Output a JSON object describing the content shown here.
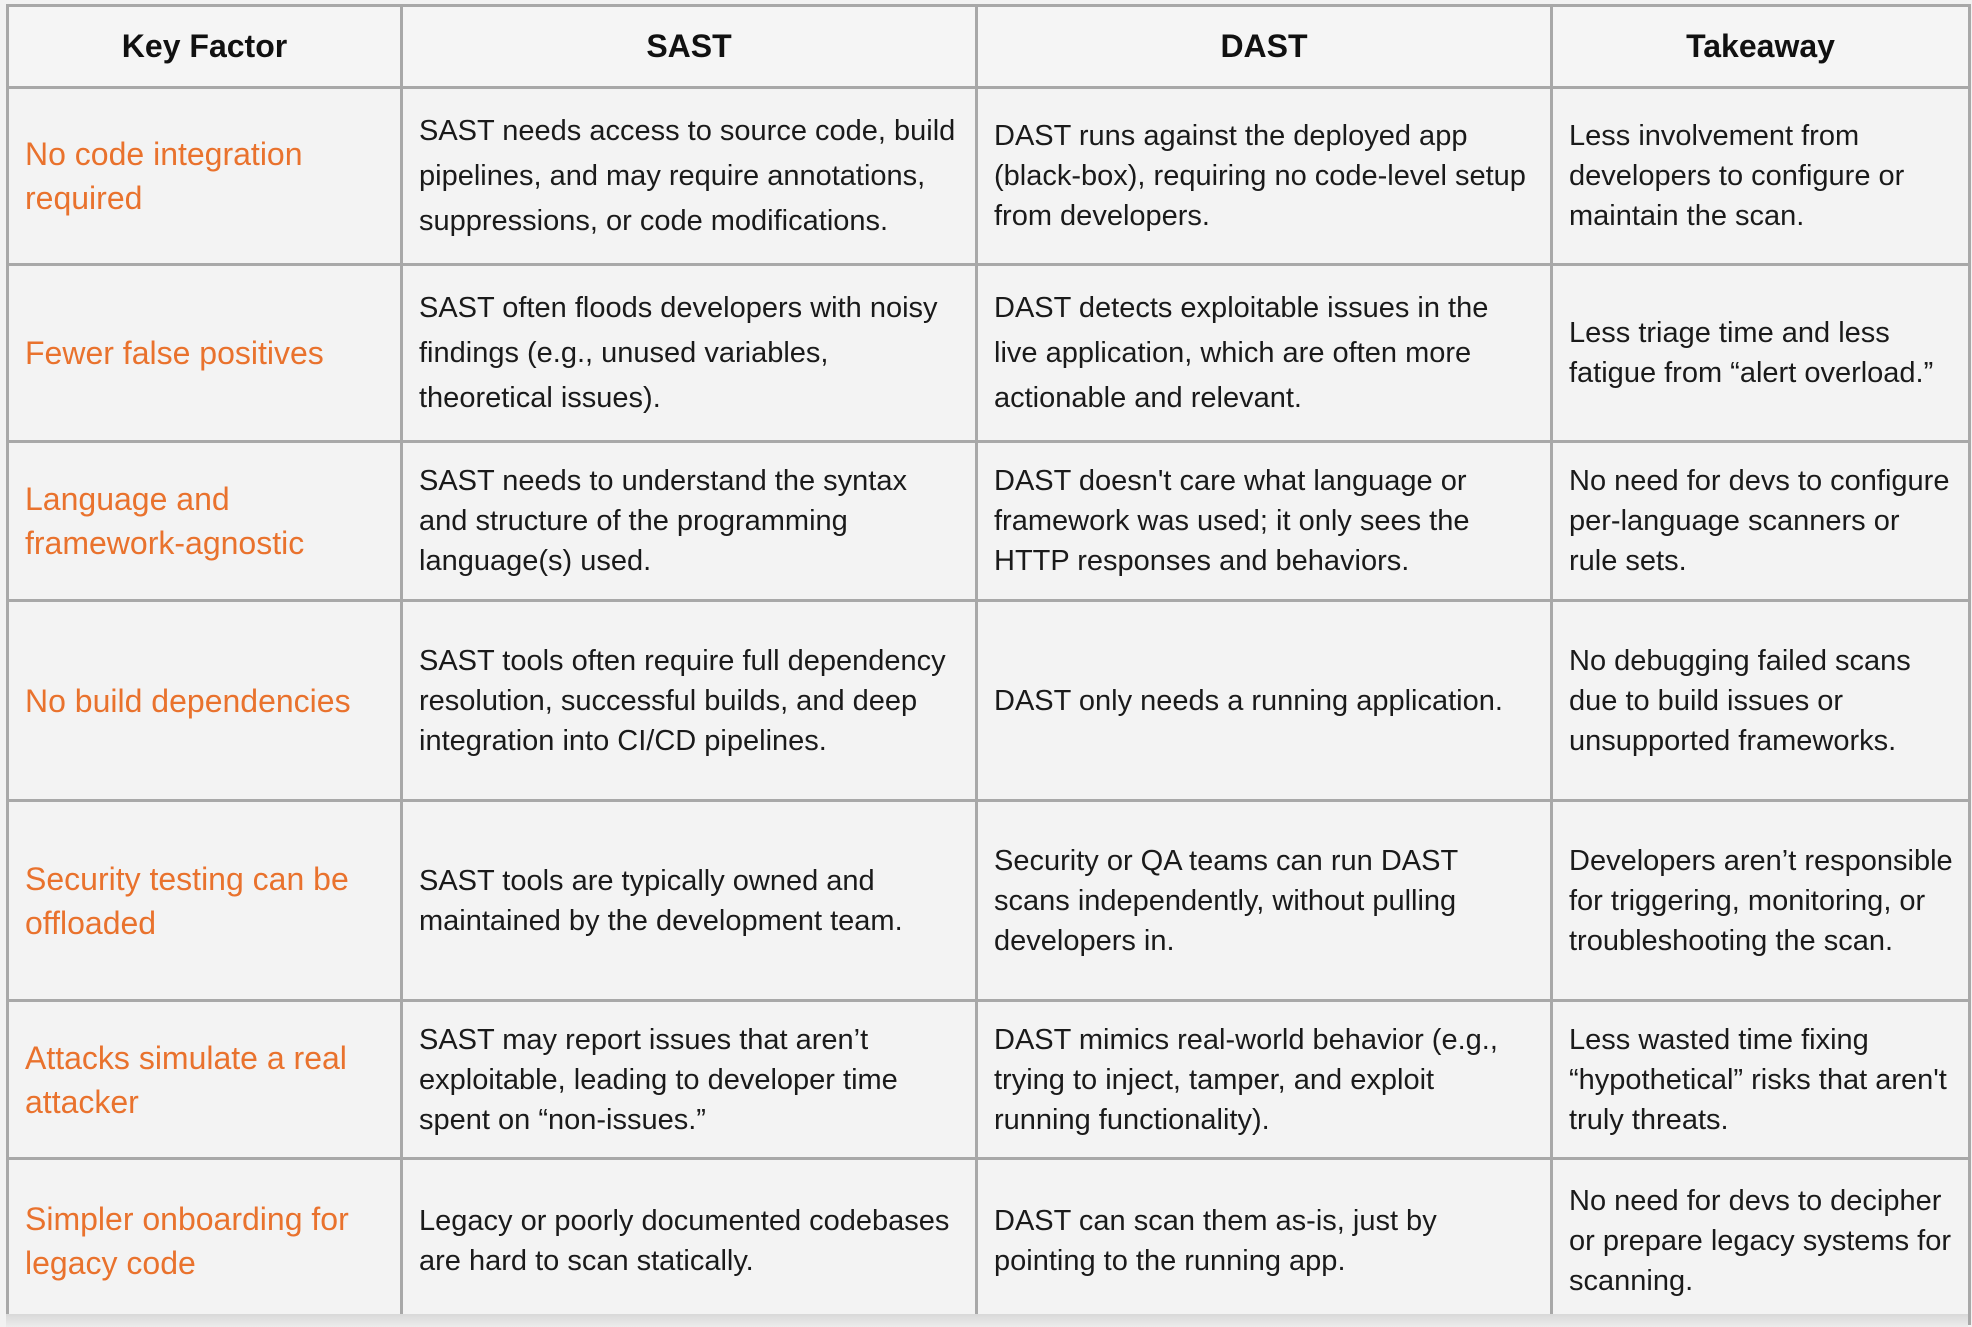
{
  "colors": {
    "factor_accent": "#e9722d",
    "border": "#a8a8a8",
    "background": "#f3f3f3",
    "text": "#1a1a1a"
  },
  "headers": [
    "Key Factor",
    "SAST",
    "DAST",
    "Takeaway"
  ],
  "rows": [
    {
      "factor": "No code integration required",
      "sast": "SAST needs access to source code, build pipelines, and may require annotations, suppressions, or code modifications.",
      "dast": "DAST runs against the deployed app (black-box), requiring no code-level setup from developers.",
      "takeaway": "Less involvement from developers to configure or maintain the scan."
    },
    {
      "factor": "Fewer false positives",
      "sast": "SAST often floods developers with noisy findings (e.g., unused variables, theoretical issues).",
      "dast": "DAST detects exploitable issues in the live application, which are often more actionable and relevant.",
      "takeaway": "Less triage time and less fatigue from “alert overload.”"
    },
    {
      "factor": "Language and framework-agnostic",
      "sast": "SAST needs to understand the syntax and structure of the programming language(s) used.",
      "dast": "DAST doesn't care what language or framework was used; it only sees the HTTP responses and behaviors.",
      "takeaway": "No need for devs to configure per-language scanners or rule sets."
    },
    {
      "factor": "No build dependencies",
      "sast": "SAST tools often require full dependency resolution, successful builds, and deep integration into CI/CD pipelines.",
      "dast": "DAST only needs a running application.",
      "takeaway": "No debugging failed scans due to build issues or unsupported frameworks."
    },
    {
      "factor": "Security testing can be offloaded",
      "sast": "SAST tools are typically owned and maintained by the development team.",
      "dast": "Security or QA teams can run DAST scans independently, without pulling developers in.",
      "takeaway": "Developers aren’t responsible for triggering, monitoring, or troubleshooting the scan."
    },
    {
      "factor": "Attacks simulate a real attacker",
      "sast": "SAST may report issues that aren’t exploitable, leading to developer time spent on “non-issues.”",
      "dast": "DAST mimics real-world behavior (e.g., trying to inject, tamper, and exploit running functionality).",
      "takeaway": "Less wasted time fixing “hypothetical” risks that aren't truly threats."
    },
    {
      "factor": "Simpler onboarding for legacy code",
      "sast": "Legacy or poorly documented codebases are hard to scan statically.",
      "dast": "DAST can scan them as-is, just by pointing to the running app.",
      "takeaway": "No need for devs to decipher or prepare legacy systems for scanning."
    }
  ]
}
